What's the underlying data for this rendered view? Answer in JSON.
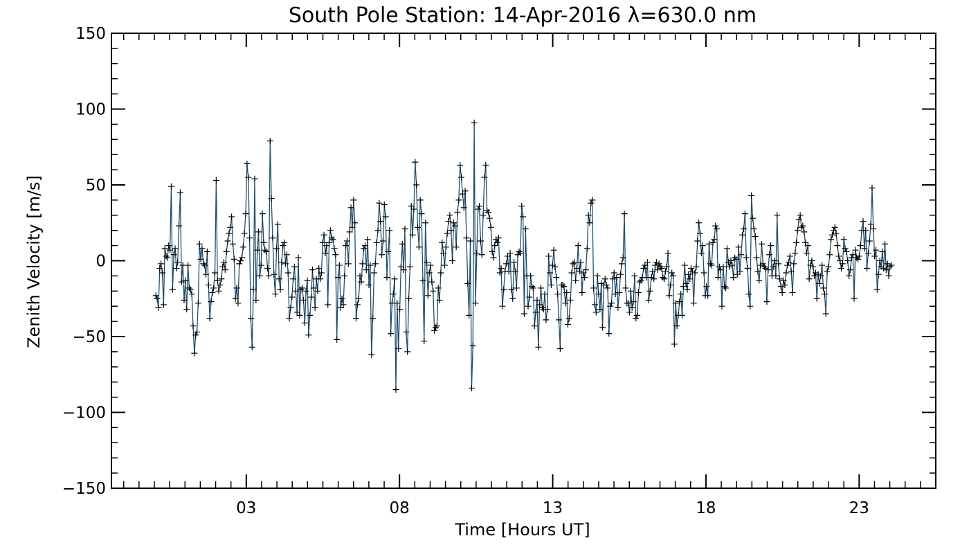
{
  "chart_data": {
    "type": "line",
    "title": "South Pole Station: 14-Apr-2016 λ=630.0 nm",
    "xlabel": "Time [Hours UT]",
    "ylabel": "Zenith Velocity [m/s]",
    "xlim": [
      -1.4,
      25.5
    ],
    "ylim": [
      -150,
      150
    ],
    "x_ticks": [
      3,
      8,
      13,
      18,
      23
    ],
    "x_tick_labels": [
      "03",
      "08",
      "13",
      "18",
      "23"
    ],
    "y_ticks": [
      -150,
      -100,
      -50,
      0,
      50,
      100,
      150
    ],
    "y_tick_labels": [
      "−150",
      "−100",
      "−50",
      "0",
      "50",
      "100",
      "150"
    ],
    "grid": false,
    "legend": "none",
    "line_color": "#1f4e6e",
    "marker": "plus",
    "marker_color": "#000000",
    "x_start": 0.05,
    "x_end": 24.05,
    "x_step": 0.05,
    "values": [
      -23,
      -25,
      -31,
      -5,
      -2,
      -8,
      -29,
      8,
      3,
      2,
      10,
      7,
      49,
      -19,
      4,
      8,
      -5,
      -1,
      23,
      45,
      -14,
      -3,
      -26,
      -13,
      -32,
      -3,
      -18,
      -19,
      -22,
      -43,
      -61,
      -49,
      -47,
      -28,
      11,
      1,
      8,
      -2,
      -3,
      -9,
      6,
      -16,
      -38,
      -27,
      -21,
      -18,
      -8,
      53,
      -13,
      -20,
      -16,
      -12,
      -4,
      -1,
      -6,
      6,
      13,
      18,
      22,
      29,
      11,
      1,
      -25,
      -18,
      -28,
      -2,
      0,
      2,
      9,
      18,
      31,
      64,
      55,
      15,
      -38,
      -57,
      -19,
      54,
      -26,
      7,
      19,
      -10,
      -3,
      31,
      12,
      7,
      6,
      -5,
      -10,
      79,
      41,
      15,
      -9,
      -22,
      8,
      24,
      -12,
      -19,
      -1,
      10,
      12,
      -2,
      4,
      -8,
      -38,
      -31,
      -24,
      -12,
      -4,
      -20,
      -34,
      2,
      -36,
      -19,
      -18,
      -26,
      -41,
      -20,
      -13,
      -49,
      -36,
      -24,
      -6,
      -18,
      -31,
      -12,
      -20,
      -5,
      -12,
      -8,
      12,
      17,
      5,
      10,
      -29,
      12,
      20,
      15,
      14,
      8,
      4,
      -52,
      -11,
      -3,
      -31,
      -25,
      -29,
      -10,
      10,
      13,
      -2,
      19,
      35,
      22,
      40,
      25,
      -38,
      -29,
      -25,
      -10,
      -14,
      -2,
      8,
      10,
      -6,
      14,
      -16,
      -3,
      -62,
      -38,
      -8,
      -2,
      12,
      20,
      38,
      26,
      4,
      13,
      37,
      29,
      -11,
      6,
      20,
      -48,
      -28,
      -22,
      -12,
      -85,
      -28,
      -58,
      -32,
      -4,
      11,
      -6,
      21,
      -47,
      -60,
      -25,
      -4,
      36,
      17,
      34,
      65,
      50,
      22,
      9,
      40,
      31,
      -13,
      -53,
      25,
      -1,
      -23,
      -8,
      -3,
      -14,
      -20,
      -46,
      -44,
      -43,
      -18,
      -26,
      -8,
      12,
      5,
      -3,
      9,
      18,
      26,
      30,
      20,
      0,
      25,
      23,
      9,
      32,
      40,
      63,
      55,
      44,
      35,
      46,
      15,
      -15,
      -36,
      13,
      -84,
      -56,
      91,
      -28,
      5,
      34,
      36,
      13,
      4,
      30,
      55,
      63,
      33,
      32,
      28,
      22,
      6,
      2,
      10,
      14,
      12,
      15,
      -8,
      -5,
      -30,
      -19,
      -7,
      -2,
      3,
      -7,
      5,
      -19,
      -25,
      -1,
      -7,
      -18,
      4,
      6,
      5,
      36,
      29,
      -35,
      21,
      -10,
      -30,
      -24,
      -10,
      -17,
      -18,
      -43,
      -34,
      -26,
      -57,
      -29,
      -18,
      -31,
      -32,
      -22,
      -39,
      -32,
      3,
      -8,
      -16,
      -3,
      7,
      -4,
      -11,
      -22,
      -39,
      -58,
      -16,
      -16,
      -17,
      -28,
      -21,
      -42,
      -38,
      -26,
      -8,
      -2,
      -1,
      -13,
      -5,
      10,
      -7,
      -1,
      -21,
      -8,
      -11,
      -6,
      8,
      30,
      25,
      38,
      40,
      -18,
      -29,
      -34,
      -10,
      -22,
      -32,
      -15,
      -44,
      -16,
      -12,
      -16,
      -18,
      -48,
      -30,
      -28,
      -12,
      -8,
      -22,
      -11,
      -31,
      -21,
      -9,
      -2,
      2,
      31,
      -18,
      -28,
      -28,
      -34,
      -20,
      -31,
      -27,
      -10,
      -38,
      -36,
      -21,
      -14,
      -13,
      -11,
      -5,
      -3,
      -11,
      -1,
      -26,
      -20,
      -11,
      -7,
      -12,
      -3,
      -1,
      -6,
      -2,
      -4,
      -5,
      -11,
      -12,
      -7,
      -4,
      5,
      -23,
      -16,
      -8,
      -10,
      -55,
      -28,
      -43,
      -36,
      -27,
      -22,
      -36,
      -17,
      -3,
      -15,
      -19,
      -9,
      -12,
      -5,
      -7,
      -28,
      -8,
      -4,
      13,
      25,
      18,
      5,
      10,
      -8,
      -23,
      -17,
      -23,
      11,
      -2,
      -3,
      12,
      14,
      23,
      21,
      -11,
      -4,
      -6,
      -30,
      -4,
      -17,
      -18,
      8,
      -1,
      -4,
      0,
      -3,
      -11,
      2,
      1,
      -9,
      9,
      -7,
      4,
      17,
      21,
      31,
      2,
      -5,
      -22,
      -30,
      43,
      28,
      21,
      16,
      2,
      -7,
      -13,
      -3,
      11,
      -2,
      -4,
      -5,
      -27,
      -6,
      4,
      10,
      -10,
      -4,
      0,
      -10,
      30,
      -2,
      -12,
      -17,
      -21,
      -13,
      -16,
      -8,
      -3,
      -1,
      3,
      -7,
      -21,
      -2,
      5,
      12,
      20,
      27,
      30,
      22,
      23,
      19,
      12,
      5,
      10,
      -12,
      -3,
      0,
      -4,
      -10,
      -8,
      -25,
      -9,
      -15,
      -10,
      -3,
      -18,
      -22,
      -35,
      -7,
      -4,
      4,
      14,
      17,
      20,
      22,
      18,
      10,
      3,
      0,
      -5,
      -2,
      14,
      8,
      6,
      0,
      -10,
      -6,
      2,
      4,
      -25,
      7,
      2,
      1,
      3,
      10,
      20,
      26,
      8,
      20,
      -5,
      5,
      13,
      24,
      48,
      21,
      3,
      7,
      -19,
      -9,
      0,
      -4,
      6,
      -5,
      11,
      -6,
      -2,
      -10,
      -4,
      -3
    ]
  }
}
